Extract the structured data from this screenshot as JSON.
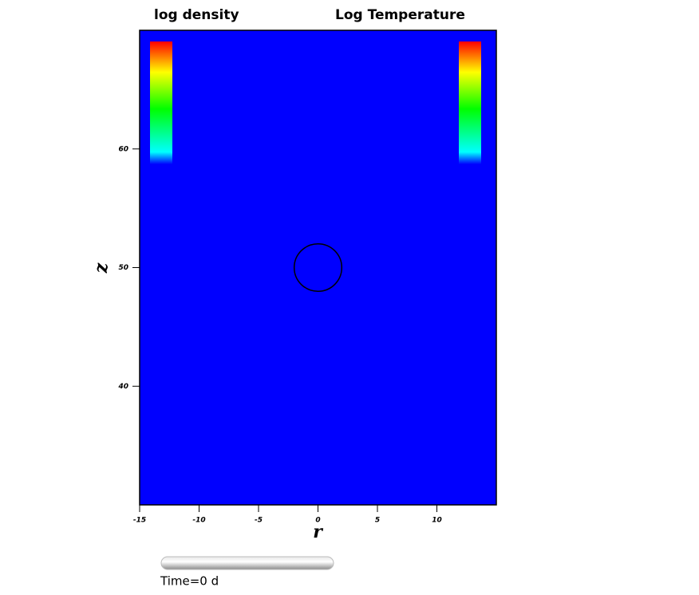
{
  "chart_data": {
    "type": "field",
    "titles": [
      "log density",
      "Log Temperature"
    ],
    "xlabel": "r",
    "ylabel": "z",
    "xlim": [
      -15,
      15
    ],
    "ylim": [
      30,
      70
    ],
    "xticks": [
      -15,
      -10,
      -5,
      0,
      5,
      10
    ],
    "yticks": [
      40,
      50,
      60
    ],
    "color": "#0000ff",
    "circle": {
      "x": 0,
      "y": 50,
      "radius": 2
    },
    "time_label": "Time=0 d"
  }
}
